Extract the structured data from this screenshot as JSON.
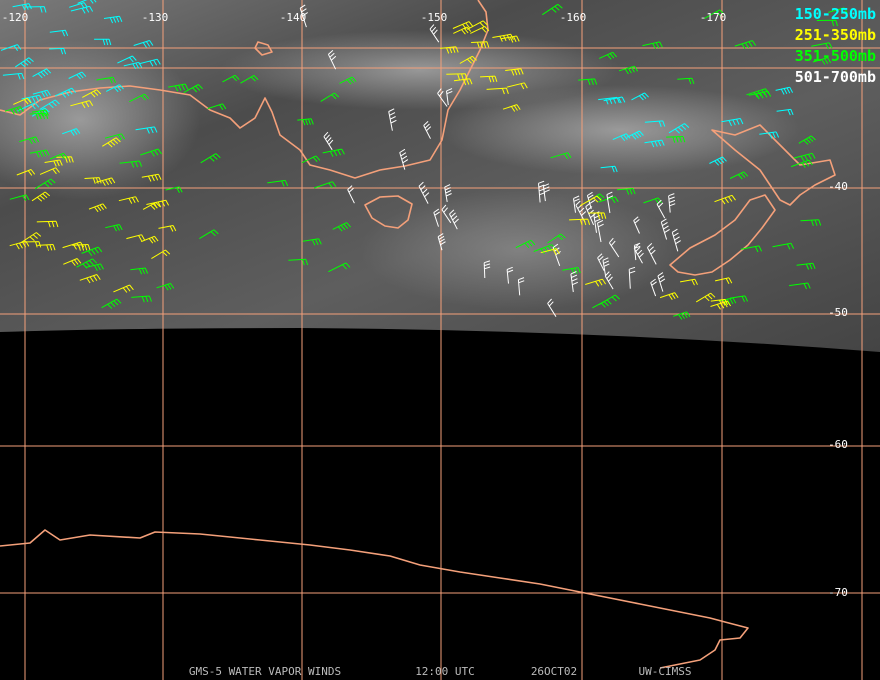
{
  "map": {
    "longitude_labels": [
      "-120",
      "-130",
      "-140",
      "-150",
      "-160",
      "-170"
    ],
    "latitude_labels": [
      "-40",
      "-50",
      "-60",
      "-70"
    ],
    "legend": [
      {
        "label": "150-250mb",
        "color": "#00ffff"
      },
      {
        "label": "251-350mb",
        "color": "#ffff00"
      },
      {
        "label": "351-500mb",
        "color": "#00ff00"
      },
      {
        "label": "501-700mb",
        "color": "#ffffff"
      }
    ],
    "footer": [
      "GMS-5 WATER VAPOR WINDS",
      "12:00 UTC",
      "26OCT02",
      "UW-CIMSS"
    ]
  }
}
